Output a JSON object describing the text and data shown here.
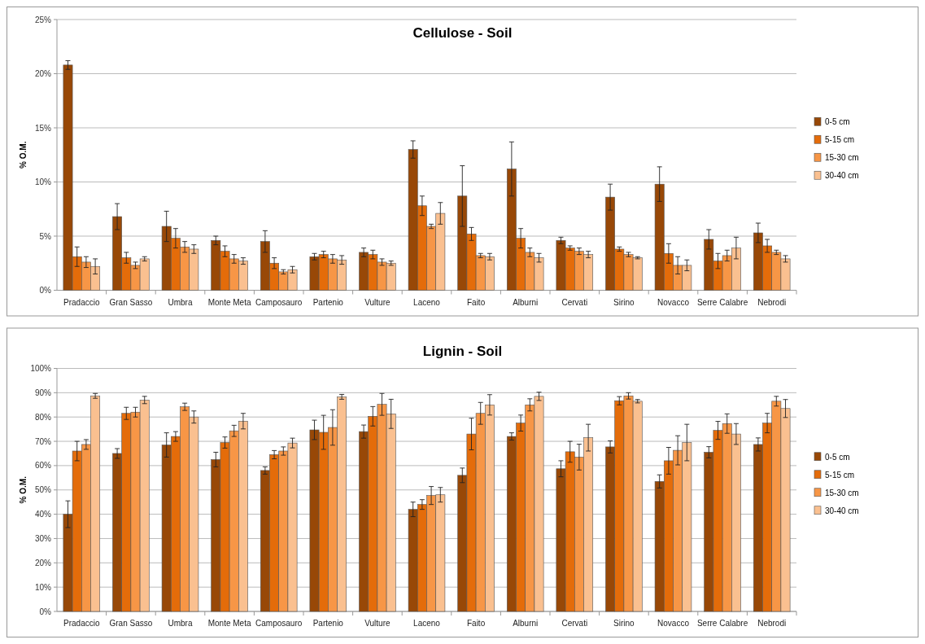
{
  "chart_data": [
    {
      "type": "bar",
      "title": "Cellulose - Soil",
      "ylabel": "% O.M.",
      "categories": [
        "Pradaccio",
        "Gran Sasso",
        "Umbra",
        "Monte Meta",
        "Camposauro",
        "Partenio",
        "Vulture",
        "Laceno",
        "Faito",
        "Alburni",
        "Cervati",
        "Sirino",
        "Novacco",
        "Serre Calabre",
        "Nebrodi"
      ],
      "series": [
        {
          "name": "0-5 cm",
          "color": "#984807",
          "values": [
            20.8,
            6.8,
            5.9,
            4.6,
            4.5,
            3.1,
            3.5,
            13.0,
            8.7,
            11.2,
            4.6,
            8.6,
            9.8,
            4.7,
            5.3
          ],
          "errors": [
            0.4,
            1.2,
            1.4,
            0.4,
            1.0,
            0.3,
            0.4,
            0.8,
            2.8,
            2.5,
            0.3,
            1.2,
            1.6,
            0.9,
            0.9
          ]
        },
        {
          "name": "5-15 cm",
          "color": "#e46c0a",
          "values": [
            3.1,
            3.0,
            4.8,
            3.6,
            2.5,
            3.3,
            3.3,
            7.8,
            5.2,
            4.8,
            3.9,
            3.8,
            3.4,
            2.7,
            4.1
          ],
          "errors": [
            0.9,
            0.5,
            0.9,
            0.5,
            0.5,
            0.3,
            0.4,
            0.9,
            0.6,
            0.9,
            0.2,
            0.2,
            0.9,
            0.7,
            0.6
          ]
        },
        {
          "name": "15-30 cm",
          "color": "#f79646",
          "values": [
            2.6,
            2.3,
            4.0,
            2.9,
            1.7,
            2.9,
            2.6,
            5.9,
            3.2,
            3.5,
            3.6,
            3.3,
            2.3,
            3.2,
            3.5
          ],
          "errors": [
            0.5,
            0.3,
            0.5,
            0.4,
            0.2,
            0.4,
            0.3,
            0.2,
            0.2,
            0.4,
            0.3,
            0.2,
            0.8,
            0.5,
            0.2
          ]
        },
        {
          "name": "30-40 cm",
          "color": "#fac090",
          "values": [
            2.2,
            2.9,
            3.8,
            2.7,
            1.9,
            2.8,
            2.5,
            7.1,
            3.1,
            3.0,
            3.3,
            3.0,
            2.3,
            3.9,
            2.9
          ],
          "errors": [
            0.7,
            0.2,
            0.4,
            0.3,
            0.3,
            0.4,
            0.2,
            1.0,
            0.3,
            0.4,
            0.3,
            0.1,
            0.5,
            1.0,
            0.3
          ]
        }
      ],
      "ylim": [
        0,
        25
      ],
      "yticks": [
        {
          "value": 0,
          "label": "0%"
        },
        {
          "value": 5,
          "label": "5%"
        },
        {
          "value": 10,
          "label": "10%"
        },
        {
          "value": 15,
          "label": "15%"
        },
        {
          "value": 20,
          "label": "20%"
        },
        {
          "value": 25,
          "label": "25%"
        }
      ],
      "grid": "y",
      "legend": "right"
    },
    {
      "type": "bar",
      "title": "Lignin - Soil",
      "ylabel": "% O.M.",
      "categories": [
        "Pradaccio",
        "Gran Sasso",
        "Umbra",
        "Monte Meta",
        "Camposauro",
        "Partenio",
        "Vulture",
        "Laceno",
        "Faito",
        "Alburni",
        "Cervati",
        "Sirino",
        "Novacco",
        "Serre Calabre",
        "Nebrodi"
      ],
      "series": [
        {
          "name": "0-5 cm",
          "color": "#984807",
          "values": [
            40,
            65,
            68.5,
            62.5,
            58,
            74.7,
            74,
            42,
            56,
            72,
            58.7,
            67.7,
            53.5,
            65.5,
            68.7
          ],
          "errors": [
            5.5,
            2,
            5,
            3,
            1.5,
            4,
            2.7,
            3,
            3,
            1.5,
            3.3,
            2.5,
            2.7,
            2.3,
            2.7
          ]
        },
        {
          "name": "5-15 cm",
          "color": "#e46c0a",
          "values": [
            66,
            81.5,
            72,
            69.5,
            64.5,
            73.7,
            80.3,
            44,
            73,
            77.5,
            65.7,
            86.7,
            62,
            74.5,
            77.5
          ],
          "errors": [
            4,
            2.5,
            2,
            2.3,
            1.7,
            7,
            4,
            2,
            6.5,
            3.3,
            4.3,
            1.7,
            5.5,
            3.7,
            4
          ]
        },
        {
          "name": "15-30 cm",
          "color": "#f79646",
          "values": [
            68.7,
            82,
            84.2,
            74.3,
            66,
            75.7,
            85.2,
            47.7,
            81.5,
            85,
            63.5,
            88.7,
            66.3,
            77.3,
            86.5
          ],
          "errors": [
            2,
            2,
            1.5,
            2.3,
            1.7,
            7.3,
            4.5,
            3.7,
            4.5,
            2.5,
            5.3,
            1.3,
            6,
            4,
            2
          ]
        },
        {
          "name": "30-40 cm",
          "color": "#fac090",
          "values": [
            88.7,
            87,
            80,
            78.3,
            69.3,
            88.3,
            81.3,
            48,
            85,
            88.5,
            71.5,
            86.5,
            69.5,
            73,
            83.5
          ],
          "errors": [
            1,
            1.5,
            2.5,
            3.2,
            2,
            1,
            6,
            3,
            4.2,
            1.7,
            5.5,
            0.7,
            7.5,
            4.3,
            3.7
          ]
        }
      ],
      "ylim": [
        0,
        100
      ],
      "yticks": [
        {
          "value": 0,
          "label": "0%"
        },
        {
          "value": 10,
          "label": "10%"
        },
        {
          "value": 20,
          "label": "20%"
        },
        {
          "value": 30,
          "label": "30%"
        },
        {
          "value": 40,
          "label": "40%"
        },
        {
          "value": 50,
          "label": "50%"
        },
        {
          "value": 60,
          "label": "60%"
        },
        {
          "value": 70,
          "label": "70%"
        },
        {
          "value": 80,
          "label": "80%"
        },
        {
          "value": 90,
          "label": "90%"
        },
        {
          "value": 100,
          "label": "100%"
        }
      ],
      "grid": "y",
      "legend": "right"
    }
  ]
}
